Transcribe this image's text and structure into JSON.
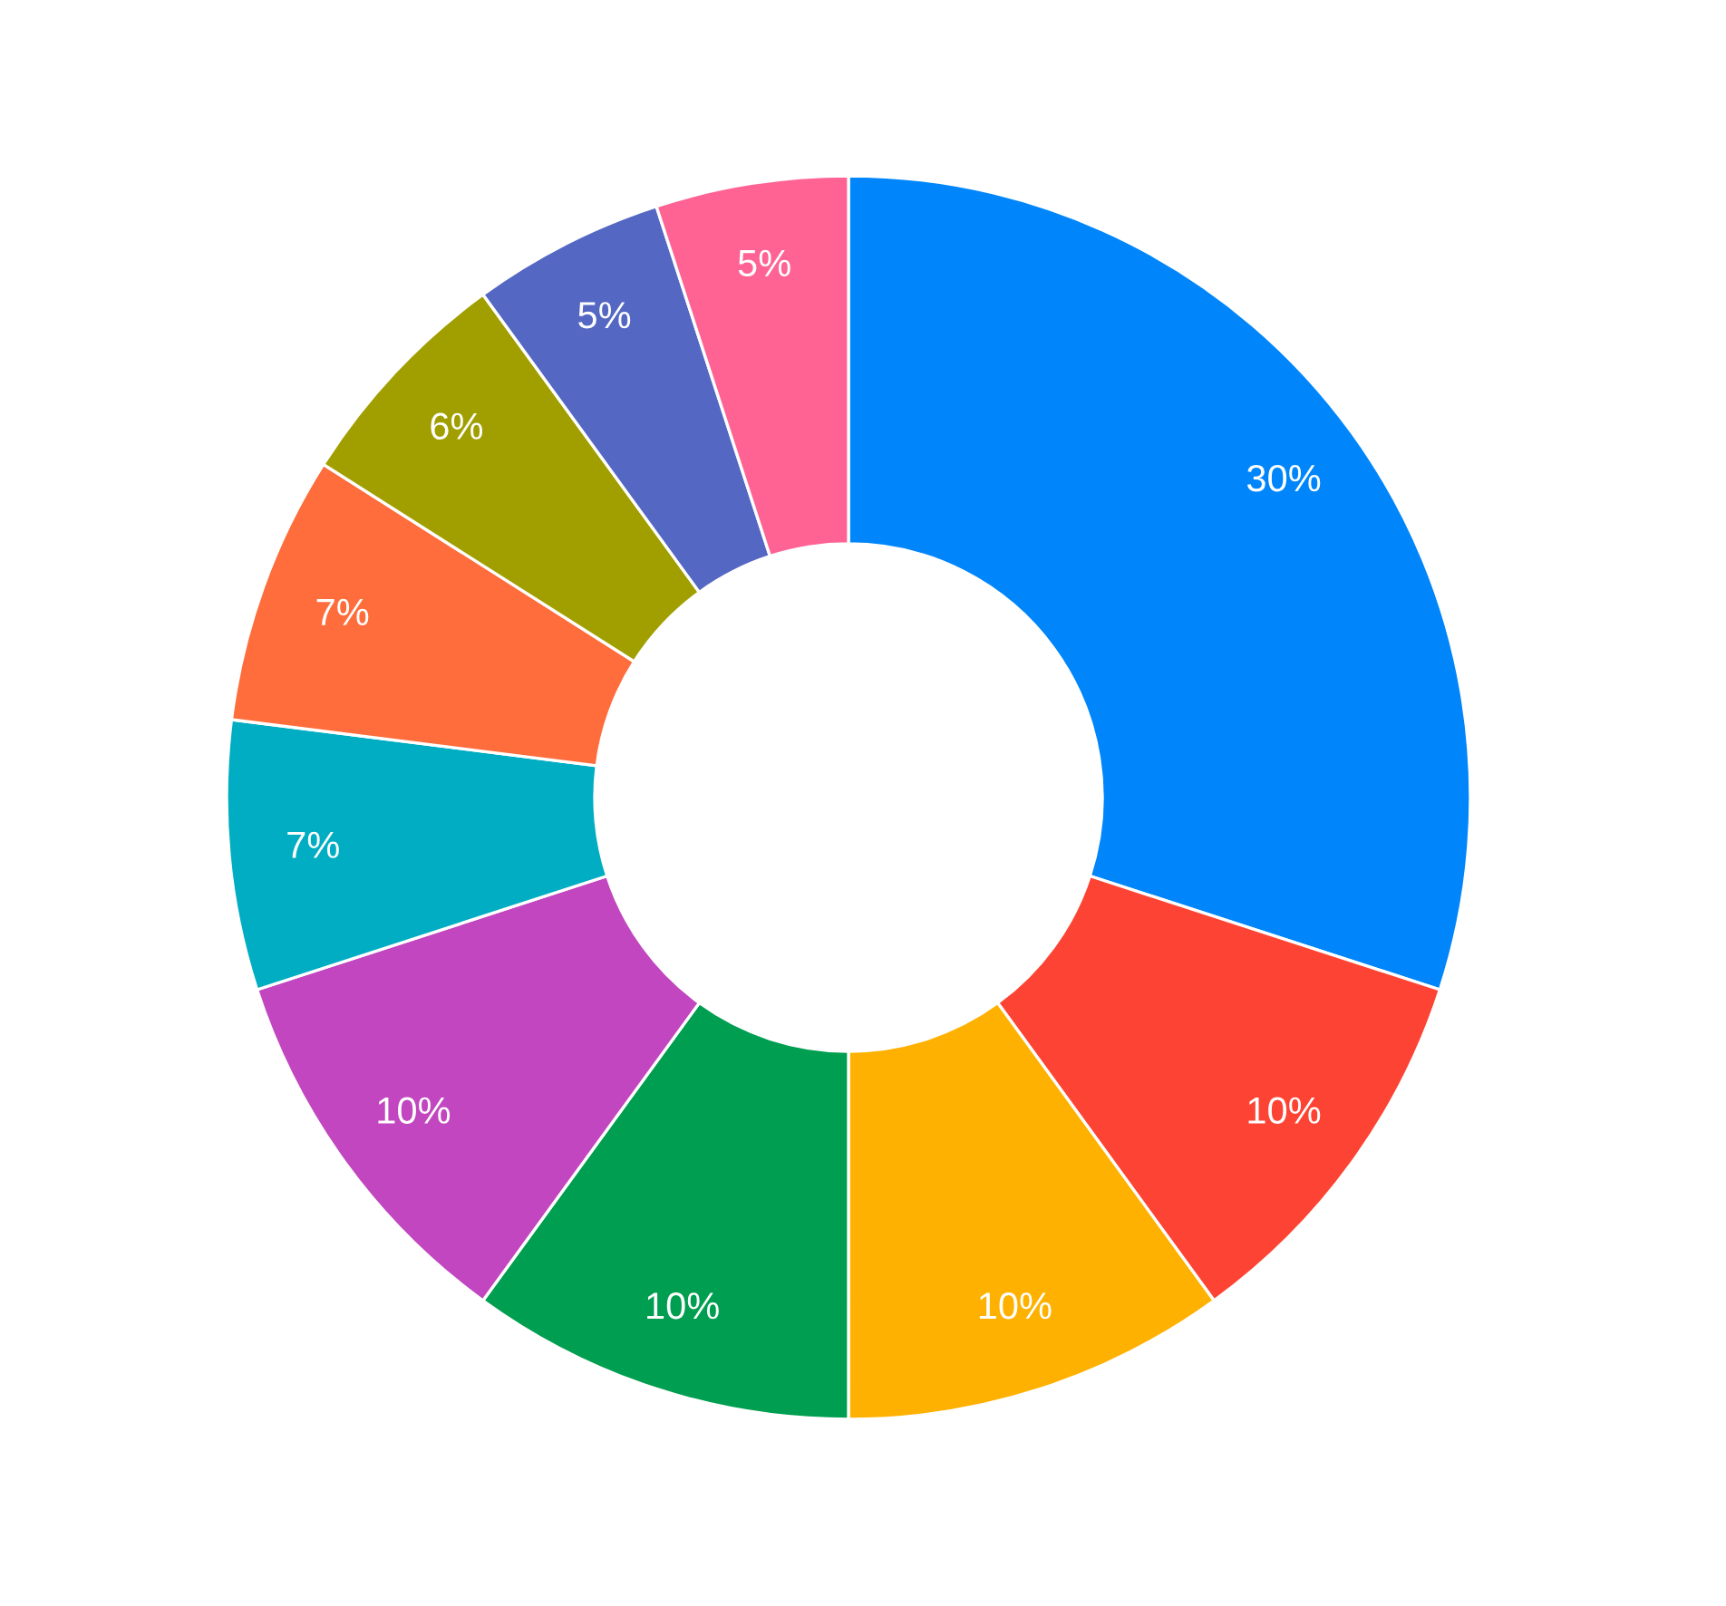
{
  "chart_data": {
    "type": "donut",
    "categories": [
      null,
      null,
      null,
      null,
      null,
      null,
      null,
      null,
      null,
      null
    ],
    "values": [
      30,
      10,
      10,
      10,
      10,
      7,
      7,
      6,
      5,
      5
    ],
    "colors": [
      "#0086fa",
      "#fd4434",
      "#feb100",
      "#009e50",
      "#c146bf",
      "#00adc2",
      "#fe6d3b",
      "#a19f00",
      "#5468c3",
      "#fe6394"
    ],
    "value_labels": [
      "30%",
      "10%",
      "10%",
      "10%",
      "10%",
      "7%",
      "7%",
      "6%",
      "5%",
      "5%"
    ]
  }
}
